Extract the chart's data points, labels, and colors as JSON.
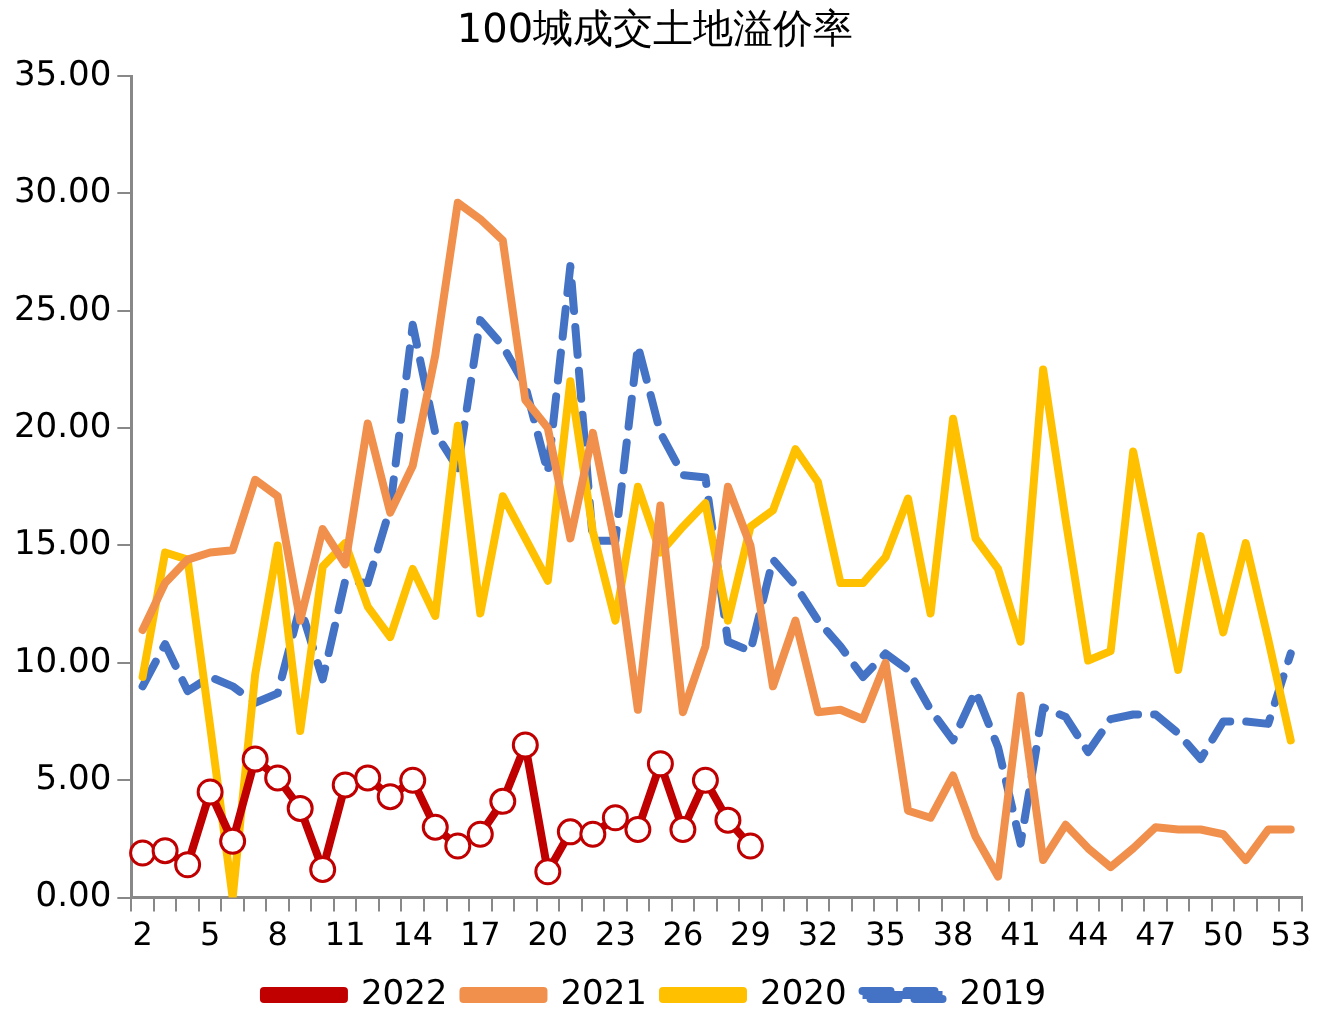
{
  "chart_data": {
    "type": "line",
    "title": "100城成交土地溢价率",
    "categories": [
      "2",
      null,
      null,
      "5",
      null,
      null,
      "8",
      null,
      null,
      "11",
      null,
      null,
      "14",
      null,
      null,
      "17",
      null,
      null,
      "20",
      null,
      null,
      "23",
      null,
      null,
      "26",
      null,
      null,
      "29",
      null,
      null,
      "32",
      null,
      null,
      "35",
      null,
      null,
      "38",
      null,
      null,
      "41",
      null,
      null,
      "44",
      null,
      null,
      "47",
      null,
      null,
      "50",
      null,
      null,
      "53"
    ],
    "series": [
      {
        "name": "2019",
        "color": "#4472c4",
        "line_style": "dashed",
        "marker": "none",
        "values": [
          9.0,
          10.8,
          8.8,
          9.4,
          9.0,
          8.3,
          8.7,
          12.4,
          9.3,
          13.5,
          13.4,
          16.6,
          24.4,
          19.8,
          18.3,
          24.6,
          23.5,
          21.8,
          18.1,
          26.9,
          15.2,
          15.2,
          23.5,
          19.8,
          18.0,
          17.9,
          10.9,
          10.5,
          14.4,
          13.3,
          11.8,
          10.7,
          9.4,
          10.4,
          9.7,
          8.0,
          6.7,
          8.8,
          6.4,
          2.3,
          8.1,
          7.7,
          6.2,
          7.6,
          7.8,
          7.8,
          7.0,
          5.9,
          7.5,
          7.5,
          7.4,
          10.4
        ]
      },
      {
        "name": "2020",
        "color": "#ffc000",
        "line_style": "solid",
        "marker": "none",
        "values": [
          9.4,
          14.7,
          14.4,
          7.3,
          0.0,
          9.5,
          15.0,
          7.1,
          14.1,
          15.1,
          12.4,
          11.1,
          14.0,
          12.0,
          20.1,
          12.1,
          17.1,
          15.3,
          13.5,
          22.0,
          15.6,
          11.8,
          17.5,
          14.7,
          15.8,
          16.8,
          11.8,
          15.8,
          16.5,
          19.1,
          17.7,
          13.4,
          13.4,
          14.5,
          17.0,
          12.1,
          20.4,
          15.3,
          14.0,
          10.9,
          22.5,
          16.1,
          10.1,
          10.5,
          19.0,
          14.3,
          9.7,
          15.4,
          11.3,
          15.1,
          11.0,
          6.7
        ]
      },
      {
        "name": "2021",
        "color": "#f0904c",
        "line_style": "solid",
        "marker": "none",
        "values": [
          11.4,
          13.4,
          14.4,
          14.7,
          14.8,
          17.8,
          17.1,
          11.8,
          15.7,
          14.2,
          20.2,
          16.4,
          18.4,
          23.1,
          29.6,
          28.9,
          28.0,
          21.2,
          20.0,
          15.3,
          19.8,
          15.0,
          8.0,
          16.7,
          7.9,
          10.7,
          17.5,
          15.0,
          9.0,
          11.8,
          7.9,
          8.0,
          7.6,
          10.0,
          3.7,
          3.4,
          5.2,
          2.6,
          0.9,
          8.6,
          1.6,
          3.1,
          2.1,
          1.3,
          2.1,
          3.0,
          2.9,
          2.9,
          2.7,
          1.6,
          2.9,
          2.9
        ]
      },
      {
        "name": "2022",
        "color": "#c00000",
        "line_style": "solid",
        "marker": "circle",
        "values": [
          1.9,
          2.0,
          1.4,
          4.5,
          2.4,
          5.9,
          5.1,
          3.8,
          1.2,
          4.8,
          5.1,
          4.3,
          5.0,
          3.0,
          2.2,
          2.7,
          4.1,
          6.5,
          1.1,
          2.8,
          2.7,
          3.4,
          2.9,
          5.7,
          2.9,
          5.0,
          3.3,
          2.2,
          null,
          null,
          null,
          null,
          null,
          null,
          null,
          null,
          null,
          null,
          null,
          null,
          null,
          null,
          null,
          null,
          null,
          null,
          null,
          null,
          null,
          null,
          null,
          null
        ]
      }
    ],
    "ylim": [
      0,
      35
    ],
    "yticks": [
      {
        "value": 0,
        "label": "0.00"
      },
      {
        "value": 5,
        "label": "5.00"
      },
      {
        "value": 10,
        "label": "10.00"
      },
      {
        "value": 15,
        "label": "15.00"
      },
      {
        "value": 20,
        "label": "20.00"
      },
      {
        "value": 25,
        "label": "25.00"
      },
      {
        "value": 30,
        "label": "30.00"
      },
      {
        "value": 35,
        "label": "35.00"
      }
    ],
    "grid": false,
    "legend": "bottom"
  }
}
